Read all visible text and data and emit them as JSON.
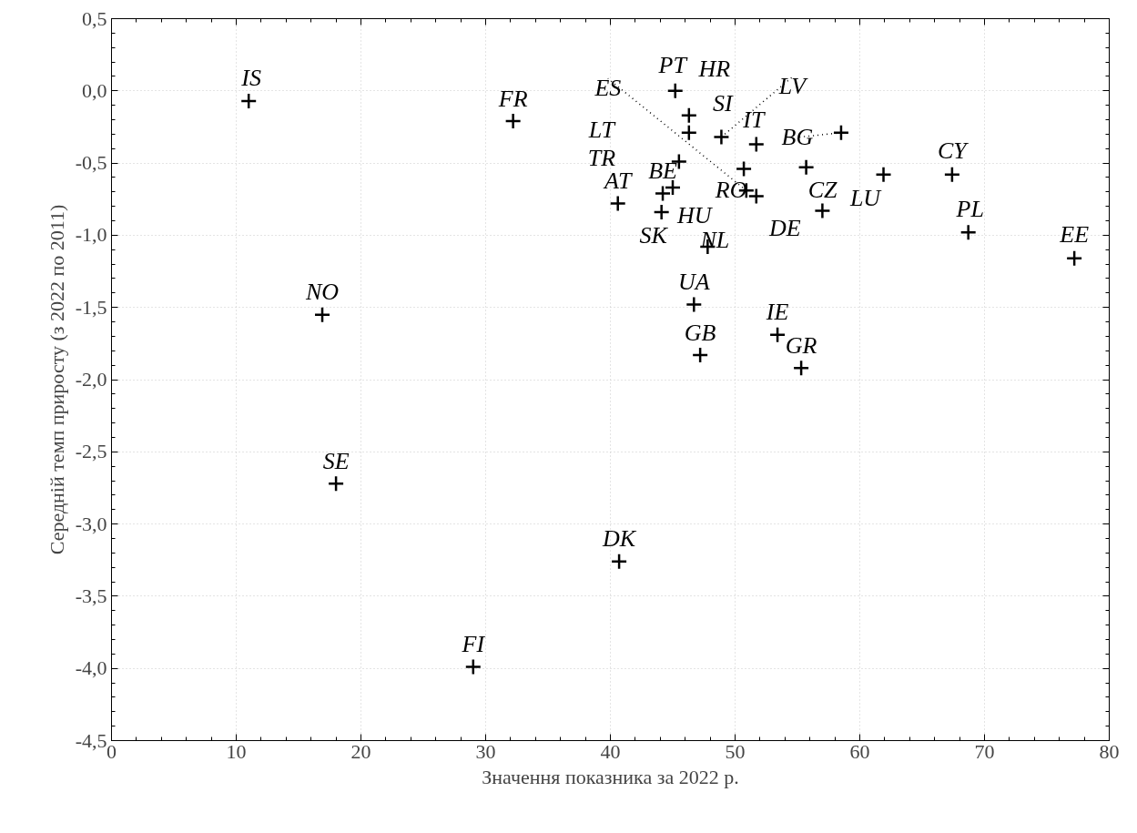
{
  "chart_data": {
    "type": "scatter",
    "xlabel": "Значення показника за 2022 р.",
    "ylabel": "Середній темп приросту (з 2022 по 2011)",
    "x": [
      11.0,
      32.2,
      45.2,
      46.3,
      46.3,
      48.9,
      51.7,
      58.5,
      50.9,
      45.5,
      45.0,
      44.2,
      40.6,
      50.7,
      57.0,
      55.7,
      51.7,
      44.1,
      47.8,
      61.9,
      67.4,
      68.7,
      77.2,
      16.9,
      46.7,
      47.2,
      53.4,
      55.3,
      18.0,
      40.7,
      29.0
    ],
    "values": [
      -0.07,
      -0.21,
      0.0,
      -0.17,
      -0.29,
      -0.32,
      -0.37,
      -0.29,
      -0.69,
      -0.49,
      -0.67,
      -0.71,
      -0.78,
      -0.54,
      -0.83,
      -0.53,
      -0.73,
      -0.84,
      -1.08,
      -0.58,
      -0.58,
      -0.98,
      -1.16,
      -1.55,
      -1.48,
      -1.83,
      -1.69,
      -1.92,
      -2.72,
      -3.26,
      -3.99
    ],
    "color": "#000000",
    "marker": "cross",
    "annotations": [
      {
        "text": "IS",
        "x": 11.0,
        "y": -0.07
      },
      {
        "text": "FR",
        "x": 32.2,
        "y": -0.21
      },
      {
        "text": "PT",
        "x": 45.2,
        "y": 0.0
      },
      {
        "text": "HR",
        "x": 46.3,
        "y": -0.17
      },
      {
        "text": "SI",
        "x": 46.3,
        "y": -0.29
      },
      {
        "text": "LV",
        "x": 48.9,
        "y": -0.32
      },
      {
        "text": "IT",
        "x": 51.7,
        "y": -0.37
      },
      {
        "text": "BG",
        "x": 58.5,
        "y": -0.29
      },
      {
        "text": "ES",
        "x": 50.9,
        "y": -0.69
      },
      {
        "text": "LT",
        "x": 45.5,
        "y": -0.49
      },
      {
        "text": "TR",
        "x": 45.0,
        "y": -0.67
      },
      {
        "text": "BE",
        "x": 44.2,
        "y": -0.71
      },
      {
        "text": "AT",
        "x": 40.6,
        "y": -0.78
      },
      {
        "text": "RO",
        "x": 50.7,
        "y": -0.54
      },
      {
        "text": "DE",
        "x": 57.0,
        "y": -0.83
      },
      {
        "text": "CZ",
        "x": 55.7,
        "y": -0.53
      },
      {
        "text": "HU",
        "x": 51.7,
        "y": -0.73
      },
      {
        "text": "SK",
        "x": 44.1,
        "y": -0.84
      },
      {
        "text": "NL",
        "x": 47.8,
        "y": -1.08
      },
      {
        "text": "LU",
        "x": 61.9,
        "y": -0.58
      },
      {
        "text": "CY",
        "x": 67.4,
        "y": -0.58
      },
      {
        "text": "PL",
        "x": 68.7,
        "y": -0.98
      },
      {
        "text": "EE",
        "x": 77.2,
        "y": -1.16
      },
      {
        "text": "NO",
        "x": 16.9,
        "y": -1.55
      },
      {
        "text": "UA",
        "x": 46.7,
        "y": -1.48
      },
      {
        "text": "GB",
        "x": 47.2,
        "y": -1.83
      },
      {
        "text": "IE",
        "x": 53.4,
        "y": -1.69
      },
      {
        "text": "GR",
        "x": 55.3,
        "y": -1.92
      },
      {
        "text": "SE",
        "x": 18.0,
        "y": -2.72
      },
      {
        "text": "DK",
        "x": 40.7,
        "y": -3.26
      },
      {
        "text": "FI",
        "x": 29.0,
        "y": -3.99
      }
    ],
    "xlim": [
      0,
      80
    ],
    "xticks": [
      0,
      10,
      20,
      30,
      40,
      50,
      60,
      70,
      80
    ],
    "ylim": [
      -4.5,
      0.5
    ],
    "yticks": [
      {
        "value": -4.5,
        "label": "-4,5"
      },
      {
        "value": -4.0,
        "label": "-4,0"
      },
      {
        "value": -3.5,
        "label": "-3,5"
      },
      {
        "value": -3.0,
        "label": "-3,0"
      },
      {
        "value": -2.5,
        "label": "-2,5"
      },
      {
        "value": -2.0,
        "label": "-2,0"
      },
      {
        "value": -1.5,
        "label": "-1,5"
      },
      {
        "value": -1.0,
        "label": "-1,0"
      },
      {
        "value": -0.5,
        "label": "-0,5"
      },
      {
        "value": 0.0,
        "label": "0,0"
      },
      {
        "value": 0.5,
        "label": "0,5"
      }
    ],
    "grid": true
  }
}
